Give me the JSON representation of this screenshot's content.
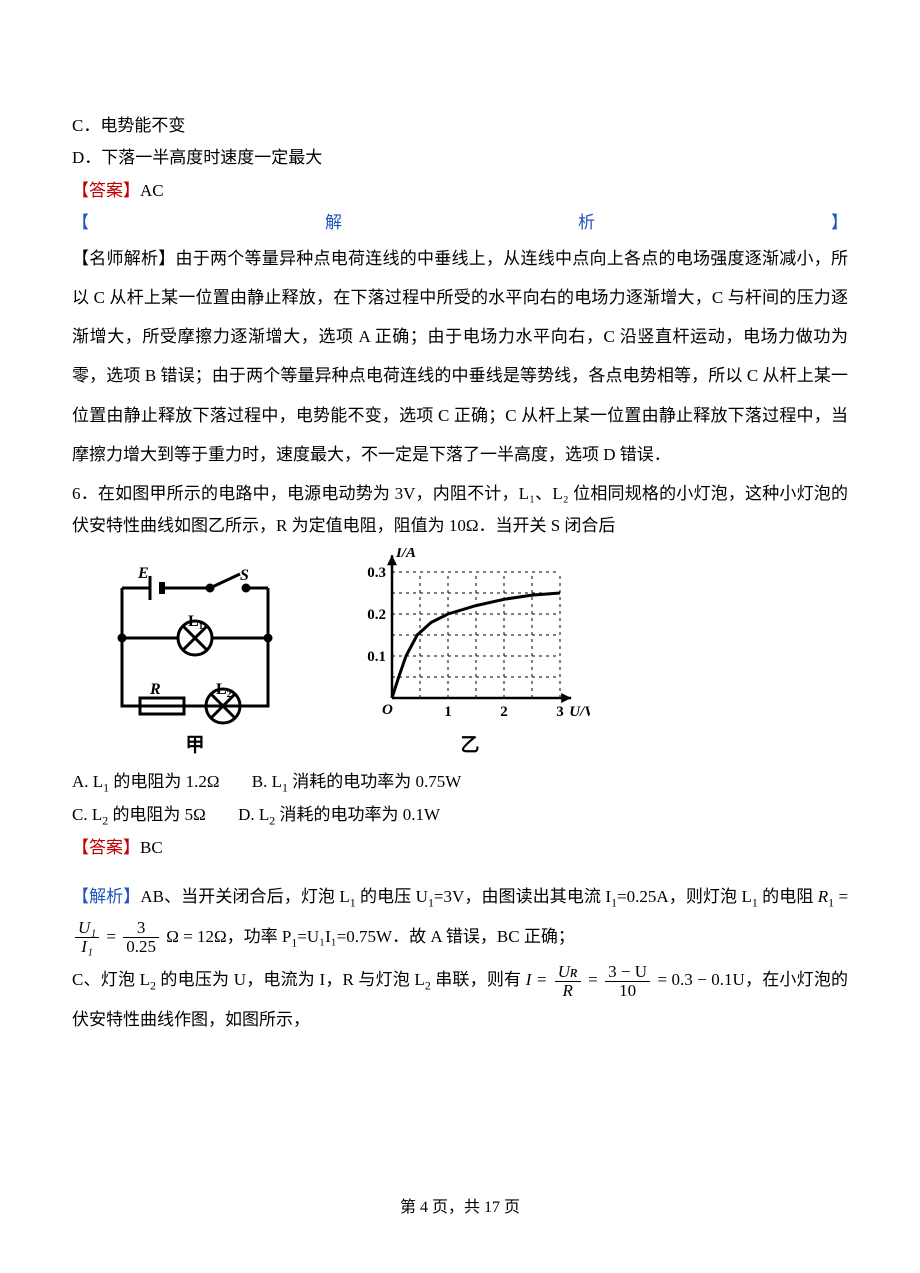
{
  "options_top": {
    "c": "C．电势能不变",
    "d": "D．下落一半高度时速度一定最大"
  },
  "answer5_label": "【答案】",
  "answer5_value": "AC",
  "analysis5_kai": "【",
  "analysis5_mid1": "解",
  "analysis5_mid2": "析",
  "analysis5_end": "】",
  "explain5_label": "【名师解析】",
  "explain5_text": "由于两个等量异种点电荷连线的中垂线上，从连线中点向上各点的电场强度逐渐减小，所以 C 从杆上某一位置由静止释放，在下落过程中所受的水平向右的电场力逐渐增大，C 与杆间的压力逐渐增大，所受摩擦力逐渐增大，选项 A 正确；由于电场力水平向右，C 沿竖直杆运动，电场力做功为零，选项 B 错误；由于两个等量异种点电荷连线的中垂线是等势线，各点电势相等，所以 C 从杆上某一位置由静止释放下落过程中，电势能不变，选项 C 正确；C 从杆上某一位置由静止释放下落过程中，当摩擦力增大到等于重力时，速度最大，不一定是下落了一半高度，选项 D 错误．",
  "q6_stem": "6．在如图甲所示的电路中，电源电动势为 3V，内阻不计，L₁、L₂ 位相同规格的小灯泡，这种小灯泡的伏安特性曲线如图乙所示，R 为定值电阻，阻值为 10Ω．当开关 S 闭合后",
  "circuit": {
    "E_label": "E",
    "S_label": "S",
    "L1_label": "L₁",
    "L2_label": "L₂",
    "R_label": "R",
    "cap": "甲"
  },
  "chart": {
    "y_label": "I/A",
    "x_label": "U/V",
    "y_ticks": [
      "0.1",
      "0.2",
      "0.3"
    ],
    "x_ticks": [
      "1",
      "2",
      "3"
    ],
    "origin": "O",
    "cap": "乙",
    "curve_points": [
      [
        0,
        0
      ],
      [
        0.12,
        0.05
      ],
      [
        0.25,
        0.1
      ],
      [
        0.45,
        0.15
      ],
      [
        0.7,
        0.18
      ],
      [
        1.0,
        0.2
      ],
      [
        1.5,
        0.22
      ],
      [
        2.0,
        0.235
      ],
      [
        2.5,
        0.245
      ],
      [
        3.0,
        0.25
      ]
    ],
    "x_max": 3.2,
    "y_max": 0.34,
    "grid_step_x": 0.5,
    "grid_step_y": 0.05
  },
  "q6_options": {
    "a_pre": "A. L",
    "a_sub": "1",
    "a_post": " 的电阻为 1.2Ω",
    "b_pre": "B. L",
    "b_sub": "1",
    "b_post": " 消耗的电功率为 0.75W",
    "c_pre": "C. L",
    "c_sub": "2",
    "c_post": " 的电阻为 5Ω",
    "d_pre": "D. L",
    "d_sub": "2",
    "d_post": " 消耗的电功率为 0.1W"
  },
  "answer6_label": "【答案】",
  "answer6_value": "BC",
  "explain6_label": "【解析】",
  "explain6_ab_pre": "AB、当开关闭合后，灯泡 L",
  "explain6_ab_sub1": "1",
  "explain6_ab_mid1": " 的电压 U",
  "explain6_ab_mid2": "=3V，由图读出其电流 I",
  "explain6_ab_mid3": "=0.25A，则灯泡 L",
  "explain6_ab_post": " 的电阻",
  "r1_eq_lhs": "R",
  "r1_eq_frac1_num": "U₁",
  "r1_eq_frac1_den": "I₁",
  "r1_eq_frac2_num": "3",
  "r1_eq_frac2_den": "0.25",
  "r1_eq_rhs": "Ω = 12Ω",
  "explain6_ab_tail_pre": "，功率 P",
  "explain6_ab_tail_mid": "=U₁I₁=0.75W．故 A 错误，BC 正确；",
  "explain6_c_pre": "C、灯泡 L",
  "explain6_c_mid1": " 的电压为 U，电流为 I，R 与灯泡 L",
  "explain6_c_mid2": " 串联，则有 ",
  "i_eq_lhs": "I =",
  "i_eq_frac1_num": "Uʀ",
  "i_eq_frac1_den": "R",
  "i_eq_frac2_num": "3 − U",
  "i_eq_frac2_den": "10",
  "i_eq_rhs": " = 0.3 − 0.1U",
  "explain6_c_tail": "，在小灯泡的伏安特性曲线作图，如图所示，",
  "footer_pre": "第 ",
  "footer_page": "4",
  "footer_mid": " 页，共 ",
  "footer_total": "17",
  "footer_post": " 页"
}
